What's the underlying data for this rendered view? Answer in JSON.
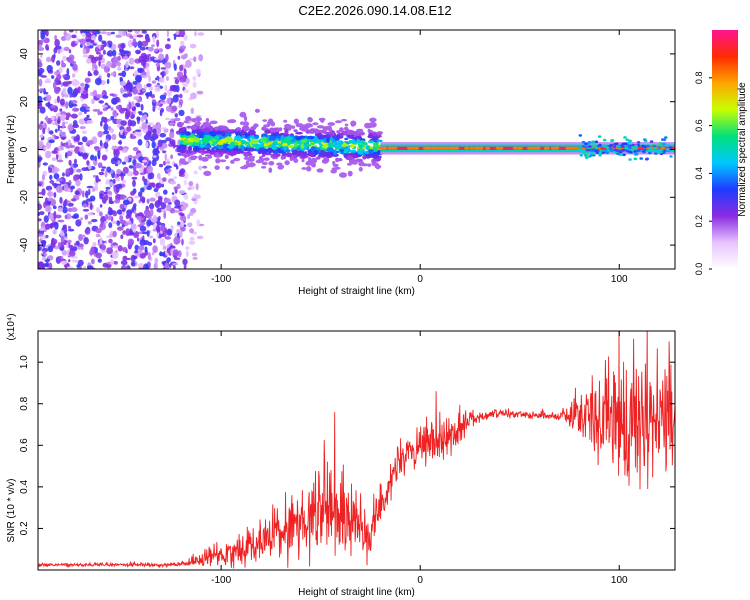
{
  "title": "C2E2.2026.090.14.08.E12",
  "chart_data": [
    {
      "type": "heatmap",
      "xlabel": "Height of straight line (km)",
      "ylabel": "Frequency (Hz)",
      "xlim": [
        -192,
        128
      ],
      "ylim": [
        -50,
        50
      ],
      "xticks": [
        -100,
        0,
        100
      ],
      "xtick_labels": [
        "-100",
        "0",
        "100"
      ],
      "yticks": [
        -40,
        -20,
        0,
        20,
        40
      ],
      "ytick_labels": [
        "-40",
        "-20",
        "0",
        "20",
        "40"
      ],
      "colorbar": {
        "label": "Normalized spectral amplitude",
        "range": [
          0,
          1
        ],
        "ticks": [
          0,
          0.2,
          0.4,
          0.6,
          0.8
        ],
        "tick_labels": [
          "0.0",
          "0.2",
          "0.4",
          "0.6",
          "0.8"
        ],
        "colors": [
          "#ffffff",
          "#e6c3ff",
          "#8a2be2",
          "#1e3cff",
          "#00c8ff",
          "#00e07a",
          "#c8ff00",
          "#ffa500",
          "#ff2a00",
          "#ff1493"
        ]
      },
      "regions": [
        {
          "name": "noise",
          "x_range": [
            -192,
            -110
          ],
          "freq_range": [
            -50,
            50
          ],
          "level": "0.1-0.3"
        },
        {
          "name": "broadband-signal",
          "x_range": [
            -120,
            -20
          ],
          "freq_center": 3,
          "freq_halfwidth": 6,
          "level": "0.2-0.6"
        },
        {
          "name": "narrowband-signal",
          "x_range": [
            -20,
            128
          ],
          "freq_center": 0.5,
          "freq_halfwidth": 1.2,
          "level": "0.9-1.0"
        }
      ]
    },
    {
      "type": "line",
      "xlabel": "Height of straight line (km)",
      "ylabel": "SNR (10 * v/v)",
      "y_scale_label": "(x10⁴)",
      "xlim": [
        -192,
        128
      ],
      "ylim": [
        0,
        1.15
      ],
      "xticks": [
        -100,
        0,
        100
      ],
      "xtick_labels": [
        "-100",
        "0",
        "100"
      ],
      "yticks": [
        0.2,
        0.4,
        0.6,
        0.8,
        1.0
      ],
      "ytick_labels": [
        "0.2",
        "0.4",
        "0.6",
        "0.8",
        "1.0"
      ],
      "series": [
        {
          "name": "SNR",
          "color": "#ee2222",
          "envelope": {
            "x": [
              -192,
              -120,
              -110,
              -90,
              -70,
              -55,
              -45,
              -38,
              -30,
              -25,
              -20,
              -15,
              -10,
              0,
              10,
              20,
              25,
              35,
              50,
              70,
              80,
              90,
              100,
              110,
              120,
              128
            ],
            "center": [
              0.025,
              0.025,
              0.05,
              0.1,
              0.18,
              0.26,
              0.28,
              0.25,
              0.22,
              0.17,
              0.3,
              0.45,
              0.52,
              0.58,
              0.62,
              0.68,
              0.73,
              0.75,
              0.75,
              0.74,
              0.76,
              0.72,
              0.7,
              0.72,
              0.72,
              0.73
            ],
            "spread": [
              0.004,
              0.005,
              0.02,
              0.04,
              0.06,
              0.09,
              0.11,
              0.09,
              0.08,
              0.06,
              0.05,
              0.05,
              0.05,
              0.05,
              0.05,
              0.04,
              0.02,
              0.01,
              0.01,
              0.01,
              0.05,
              0.12,
              0.15,
              0.14,
              0.13,
              0.12
            ]
          },
          "peaks": [
            {
              "x": -43,
              "y": 0.76
            },
            {
              "x": 8,
              "y": 0.86
            },
            {
              "x": 100,
              "y": 1.15
            },
            {
              "x": 125,
              "y": 1.1
            }
          ]
        }
      ]
    }
  ]
}
